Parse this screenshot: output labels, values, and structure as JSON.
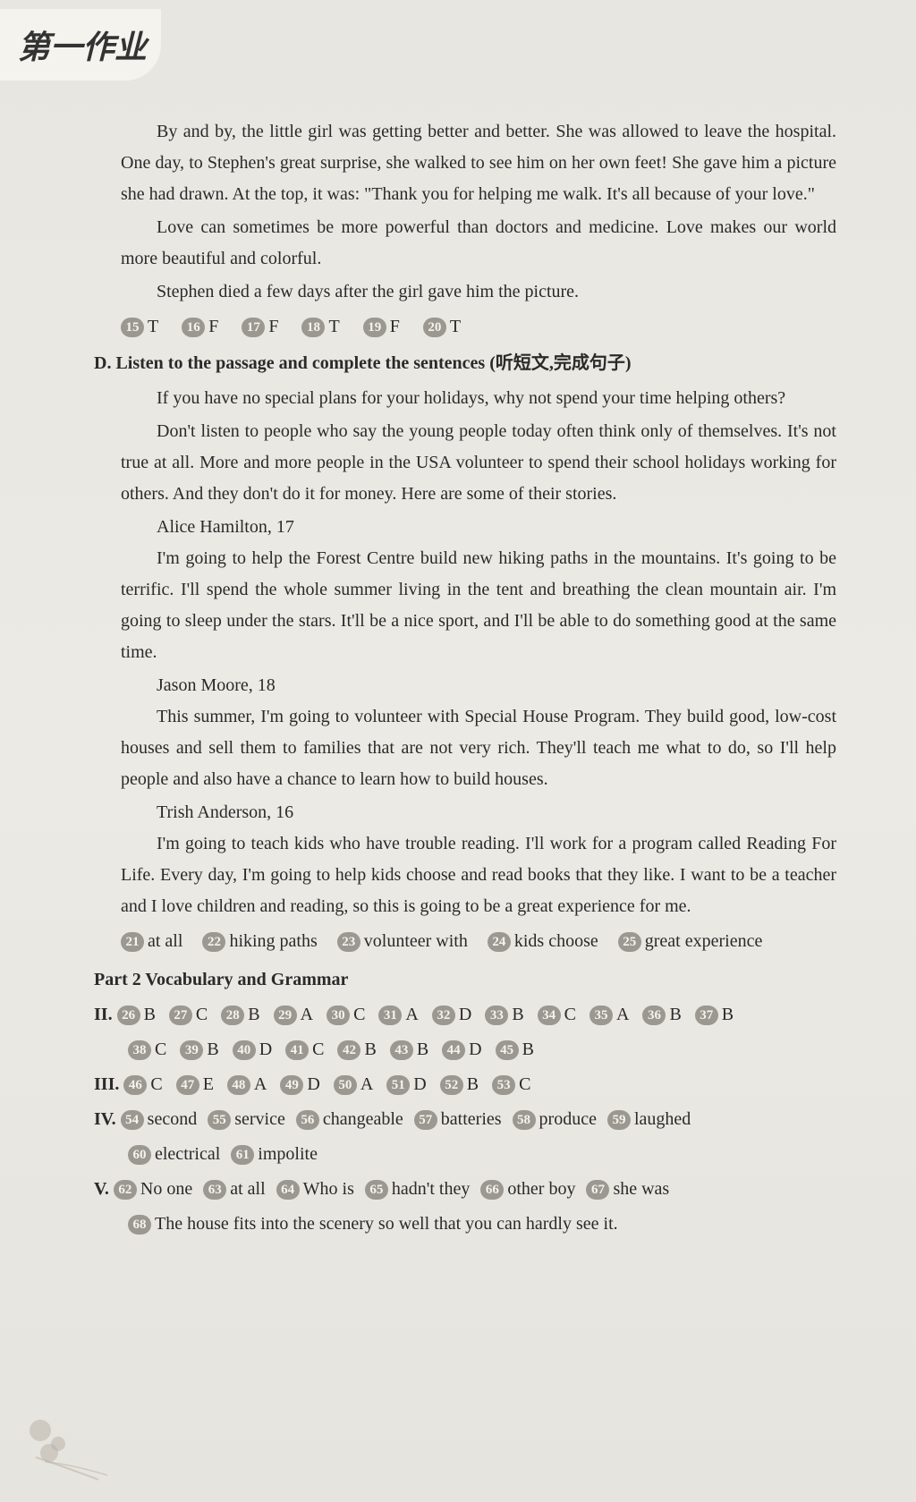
{
  "header": {
    "title": "第一作业"
  },
  "story": {
    "p1": "By and by, the little girl was getting better and better. She was allowed to leave the hospital. One day, to Stephen's great surprise, she walked to see him on her own feet! She gave him a picture she had drawn. At the top, it was: \"Thank you for helping me walk. It's all because of your love.\"",
    "p2": "Love can sometimes be more powerful than doctors and medicine. Love makes our world more beautiful and colorful.",
    "p3": "Stephen died a few days after the girl gave him the picture."
  },
  "answers_tf": [
    {
      "n": "15",
      "v": "T"
    },
    {
      "n": "16",
      "v": "F"
    },
    {
      "n": "17",
      "v": "F"
    },
    {
      "n": "18",
      "v": "T"
    },
    {
      "n": "19",
      "v": "F"
    },
    {
      "n": "20",
      "v": "T"
    }
  ],
  "section_d": {
    "heading": "D. Listen to the passage and complete the sentences (听短文,完成句子)",
    "p1": "If you have no special plans for your holidays, why not spend your time helping others?",
    "p2": "Don't listen to people who say the young people today often think only of themselves. It's not true at all. More and more people in the USA volunteer to spend their school holidays working for others. And they don't do it for money. Here are some of their stories.",
    "name1": "Alice Hamilton, 17",
    "p3": "I'm going to help the Forest Centre build new hiking paths in the mountains. It's going to be terrific. I'll spend the whole summer living in the tent and breathing the clean mountain air. I'm going to sleep under the stars. It'll be a nice sport, and I'll be able to do something good at the same time.",
    "name2": "Jason Moore, 18",
    "p4": "This summer, I'm going to volunteer with Special House Program. They build good, low-cost houses and sell them to families that are not very rich. They'll teach me what to do, so I'll help people and also have a chance to learn how to build houses.",
    "name3": "Trish Anderson, 16",
    "p5": "I'm going to teach kids who have trouble reading. I'll work for a program called Reading For Life. Every day, I'm going to help kids choose and read books that they like. I want to be a teacher and I love children and reading, so this is going to be a great experience for me."
  },
  "answers_d": [
    {
      "n": "21",
      "v": "at all"
    },
    {
      "n": "22",
      "v": "hiking paths"
    },
    {
      "n": "23",
      "v": "volunteer with"
    },
    {
      "n": "24",
      "v": "kids choose"
    },
    {
      "n": "25",
      "v": "great experience"
    }
  ],
  "part2": {
    "heading": "Part 2  Vocabulary and Grammar"
  },
  "section_ii": {
    "label": "II.",
    "row1": [
      {
        "n": "26",
        "v": "B"
      },
      {
        "n": "27",
        "v": "C"
      },
      {
        "n": "28",
        "v": "B"
      },
      {
        "n": "29",
        "v": "A"
      },
      {
        "n": "30",
        "v": "C"
      },
      {
        "n": "31",
        "v": "A"
      },
      {
        "n": "32",
        "v": "D"
      },
      {
        "n": "33",
        "v": "B"
      },
      {
        "n": "34",
        "v": "C"
      },
      {
        "n": "35",
        "v": "A"
      },
      {
        "n": "36",
        "v": "B"
      },
      {
        "n": "37",
        "v": "B"
      }
    ],
    "row2": [
      {
        "n": "38",
        "v": "C"
      },
      {
        "n": "39",
        "v": "B"
      },
      {
        "n": "40",
        "v": "D"
      },
      {
        "n": "41",
        "v": "C"
      },
      {
        "n": "42",
        "v": "B"
      },
      {
        "n": "43",
        "v": "B"
      },
      {
        "n": "44",
        "v": "D"
      },
      {
        "n": "45",
        "v": "B"
      }
    ]
  },
  "section_iii": {
    "label": "III.",
    "row1": [
      {
        "n": "46",
        "v": "C"
      },
      {
        "n": "47",
        "v": "E"
      },
      {
        "n": "48",
        "v": "A"
      },
      {
        "n": "49",
        "v": "D"
      },
      {
        "n": "50",
        "v": "A"
      },
      {
        "n": "51",
        "v": "D"
      },
      {
        "n": "52",
        "v": "B"
      },
      {
        "n": "53",
        "v": "C"
      }
    ]
  },
  "section_iv": {
    "label": "IV.",
    "row1": [
      {
        "n": "54",
        "v": "second"
      },
      {
        "n": "55",
        "v": "service"
      },
      {
        "n": "56",
        "v": "changeable"
      },
      {
        "n": "57",
        "v": "batteries"
      },
      {
        "n": "58",
        "v": "produce"
      },
      {
        "n": "59",
        "v": "laughed"
      }
    ],
    "row2": [
      {
        "n": "60",
        "v": "electrical"
      },
      {
        "n": "61",
        "v": "impolite"
      }
    ]
  },
  "section_v": {
    "label": "V.",
    "row1": [
      {
        "n": "62",
        "v": "No one"
      },
      {
        "n": "63",
        "v": "at all"
      },
      {
        "n": "64",
        "v": "Who is"
      },
      {
        "n": "65",
        "v": "hadn't they"
      },
      {
        "n": "66",
        "v": "other boy"
      },
      {
        "n": "67",
        "v": "she was"
      }
    ],
    "row2": [
      {
        "n": "68",
        "v": "The house fits into the scenery so well that you can hardly see it."
      }
    ]
  },
  "colors": {
    "background": "#eceae4",
    "text": "#2a2a2a",
    "circle_bg": "#9a9890",
    "circle_text": "#f5f3ed"
  }
}
